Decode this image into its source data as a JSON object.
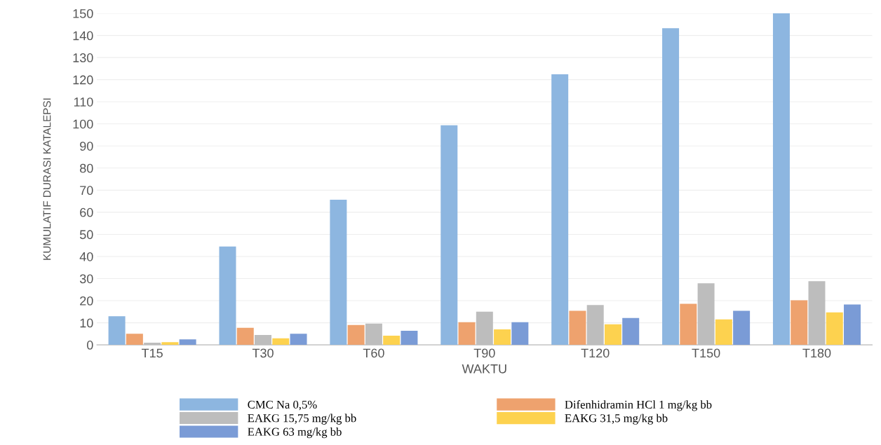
{
  "chart_data": {
    "type": "bar",
    "xlabel": "WAKTU",
    "ylabel": "KUMULATIF DURASI KATALEPSI",
    "categories": [
      "T15",
      "T30",
      "T60",
      "T90",
      "T120",
      "T150",
      "T180"
    ],
    "series": [
      {
        "name": "CMC Na 0,5%",
        "color": "#8db6e0",
        "values": [
          13,
          44.5,
          65.7,
          99.4,
          122.4,
          143.3,
          150
        ]
      },
      {
        "name": "Difenhidramin HCl 1 mg/kg bb",
        "color": "#eea26e",
        "values": [
          5,
          7.7,
          9,
          10.3,
          15.4,
          18.6,
          20.2
        ]
      },
      {
        "name": "EAKG 15,75 mg/kg bb",
        "color": "#bdbdbd",
        "values": [
          1,
          4.5,
          9.6,
          15,
          18,
          27.9,
          28.8
        ]
      },
      {
        "name": "EAKG 31,5 mg/kg bb",
        "color": "#fdd24f",
        "values": [
          1.2,
          3,
          4.2,
          7,
          9.3,
          11.5,
          14.7
        ]
      },
      {
        "name": "EAKG 63 mg/kg bb",
        "color": "#7a9bd6",
        "values": [
          2.5,
          5,
          6.4,
          10.3,
          12.2,
          15.4,
          18.3
        ]
      }
    ],
    "ylim": [
      0,
      150
    ],
    "yticks": [
      0,
      10,
      20,
      30,
      40,
      50,
      60,
      70,
      80,
      90,
      100,
      110,
      120,
      130,
      140,
      150
    ],
    "grid": "y",
    "legend": "bottom"
  }
}
